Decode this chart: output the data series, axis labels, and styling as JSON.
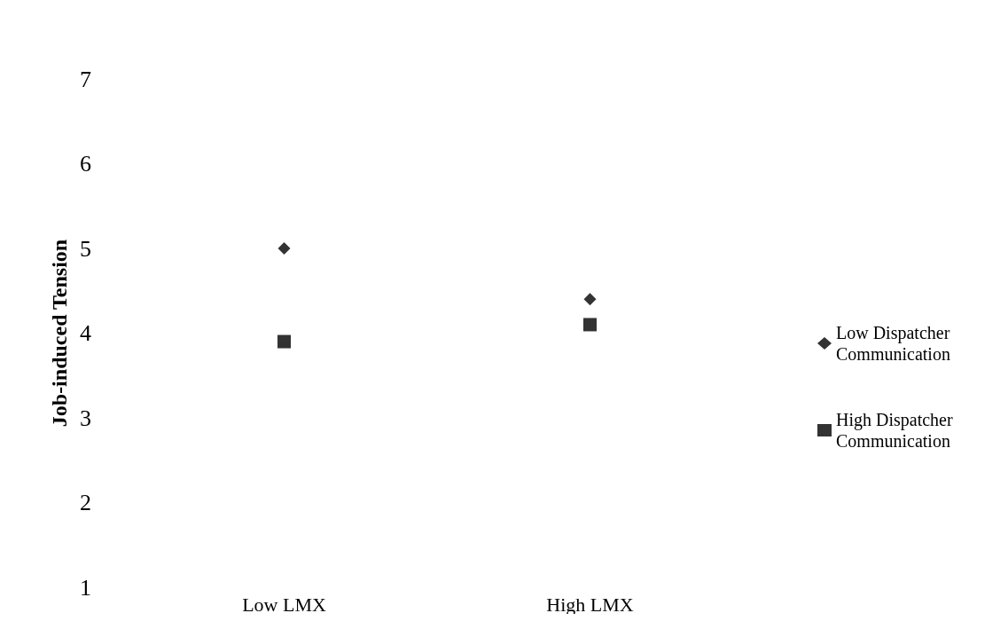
{
  "chart_data": {
    "type": "scatter",
    "ylabel": "Job-induced Tension",
    "categories": [
      "Low LMX",
      "High LMX"
    ],
    "series": [
      {
        "name": "Low Dispatcher Communication",
        "color": "#000000",
        "marker": "diamond",
        "values": [
          5.0,
          4.4
        ]
      },
      {
        "name": "High Dispatcher Communication",
        "color": "#000000",
        "marker": "square",
        "values": [
          3.9,
          4.1
        ]
      }
    ],
    "ylim": [
      1,
      7
    ],
    "yticks": [
      1,
      2,
      3,
      4,
      5,
      6,
      7
    ],
    "grid": false,
    "legend": "right"
  }
}
